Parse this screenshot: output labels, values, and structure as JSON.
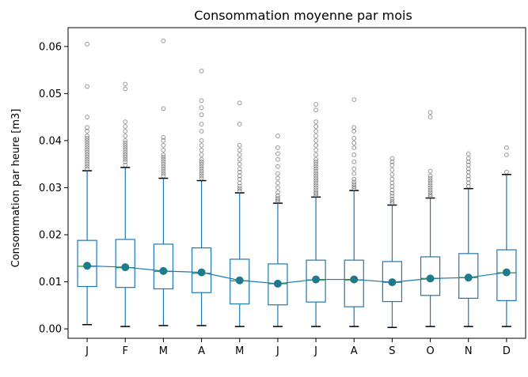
{
  "chart_data": {
    "type": "box",
    "title": "Consommation moyenne par mois",
    "xlabel": "",
    "ylabel": "Consommation par heure [m3]",
    "ylim": [
      -0.002,
      0.064
    ],
    "yticks": [
      0.0,
      0.01,
      0.02,
      0.03,
      0.04,
      0.05,
      0.06
    ],
    "ytick_labels": [
      "0.00",
      "0.01",
      "0.02",
      "0.03",
      "0.04",
      "0.05",
      "0.06"
    ],
    "categories": [
      "J",
      "F",
      "M",
      "A",
      "M",
      "J",
      "J",
      "A",
      "S",
      "O",
      "N",
      "D"
    ],
    "grid": false,
    "boxes": [
      {
        "whislo": 0.0009,
        "q1": 0.009,
        "median": 0.0133,
        "q3": 0.0188,
        "whishi": 0.0336,
        "fliers": [
          0.034,
          0.0345,
          0.035,
          0.0355,
          0.036,
          0.0365,
          0.037,
          0.0375,
          0.038,
          0.0385,
          0.039,
          0.0395,
          0.04,
          0.0405,
          0.041,
          0.042,
          0.0428,
          0.045,
          0.0515,
          0.0605
        ]
      },
      {
        "whislo": 0.0005,
        "q1": 0.0088,
        "median": 0.013,
        "q3": 0.019,
        "whishi": 0.0343,
        "fliers": [
          0.0348,
          0.0355,
          0.036,
          0.0365,
          0.037,
          0.0375,
          0.038,
          0.0385,
          0.039,
          0.0395,
          0.04,
          0.041,
          0.042,
          0.043,
          0.044,
          0.051,
          0.052
        ]
      },
      {
        "whislo": 0.0007,
        "q1": 0.0085,
        "median": 0.0122,
        "q3": 0.018,
        "whishi": 0.032,
        "fliers": [
          0.0325,
          0.033,
          0.0335,
          0.034,
          0.0345,
          0.035,
          0.0355,
          0.036,
          0.0365,
          0.037,
          0.038,
          0.039,
          0.04,
          0.0407,
          0.0468,
          0.0612
        ]
      },
      {
        "whislo": 0.0007,
        "q1": 0.0077,
        "median": 0.0118,
        "q3": 0.0172,
        "whishi": 0.0315,
        "fliers": [
          0.032,
          0.0325,
          0.033,
          0.0335,
          0.034,
          0.0345,
          0.035,
          0.0355,
          0.036,
          0.037,
          0.038,
          0.039,
          0.04,
          0.042,
          0.0435,
          0.0455,
          0.047,
          0.0485,
          0.0548
        ]
      },
      {
        "whislo": 0.0005,
        "q1": 0.0053,
        "median": 0.0102,
        "q3": 0.0148,
        "whishi": 0.0289,
        "fliers": [
          0.0293,
          0.0298,
          0.0303,
          0.031,
          0.0318,
          0.0325,
          0.0333,
          0.034,
          0.035,
          0.036,
          0.037,
          0.038,
          0.039,
          0.0435,
          0.048
        ]
      },
      {
        "whislo": 0.0005,
        "q1": 0.0051,
        "median": 0.0096,
        "q3": 0.0138,
        "whishi": 0.0267,
        "fliers": [
          0.027,
          0.0274,
          0.0278,
          0.0283,
          0.029,
          0.03,
          0.031,
          0.032,
          0.033,
          0.0345,
          0.036,
          0.0372,
          0.0385,
          0.041
        ]
      },
      {
        "whislo": 0.0005,
        "q1": 0.0057,
        "median": 0.0104,
        "q3": 0.0146,
        "whishi": 0.028,
        "fliers": [
          0.0283,
          0.0287,
          0.029,
          0.0295,
          0.03,
          0.0305,
          0.031,
          0.0315,
          0.032,
          0.0325,
          0.033,
          0.0335,
          0.034,
          0.0345,
          0.035,
          0.0355,
          0.036,
          0.037,
          0.038,
          0.039,
          0.04,
          0.041,
          0.042,
          0.043,
          0.044,
          0.0465,
          0.0477
        ]
      },
      {
        "whislo": 0.0005,
        "q1": 0.0047,
        "median": 0.0104,
        "q3": 0.0146,
        "whishi": 0.0294,
        "fliers": [
          0.0298,
          0.0302,
          0.0307,
          0.0312,
          0.0318,
          0.033,
          0.034,
          0.0355,
          0.037,
          0.0385,
          0.0395,
          0.0405,
          0.042,
          0.0428,
          0.0487
        ]
      },
      {
        "whislo": 0.0003,
        "q1": 0.0058,
        "median": 0.0099,
        "q3": 0.0143,
        "whishi": 0.0263,
        "fliers": [
          0.0267,
          0.0271,
          0.0276,
          0.0282,
          0.0288,
          0.0295,
          0.0303,
          0.031,
          0.0318,
          0.0328,
          0.0338,
          0.0348,
          0.0355,
          0.0362
        ]
      },
      {
        "whislo": 0.0005,
        "q1": 0.0071,
        "median": 0.0107,
        "q3": 0.0153,
        "whishi": 0.0278,
        "fliers": [
          0.0281,
          0.0285,
          0.029,
          0.0295,
          0.03,
          0.0305,
          0.031,
          0.0315,
          0.032,
          0.0325,
          0.0335,
          0.045,
          0.046
        ]
      },
      {
        "whislo": 0.0005,
        "q1": 0.0065,
        "median": 0.0109,
        "q3": 0.016,
        "whishi": 0.0298,
        "fliers": [
          0.0303,
          0.031,
          0.0318,
          0.0325,
          0.0333,
          0.034,
          0.0348,
          0.0355,
          0.0362,
          0.0372
        ]
      },
      {
        "whislo": 0.0005,
        "q1": 0.006,
        "median": 0.0119,
        "q3": 0.0168,
        "whishi": 0.0328,
        "fliers": [
          0.0333,
          0.037,
          0.0385
        ]
      }
    ],
    "means": [
      0.0134,
      0.0131,
      0.0123,
      0.012,
      0.0103,
      0.0096,
      0.0105,
      0.0105,
      0.0099,
      0.0107,
      0.0109,
      0.012
    ]
  }
}
